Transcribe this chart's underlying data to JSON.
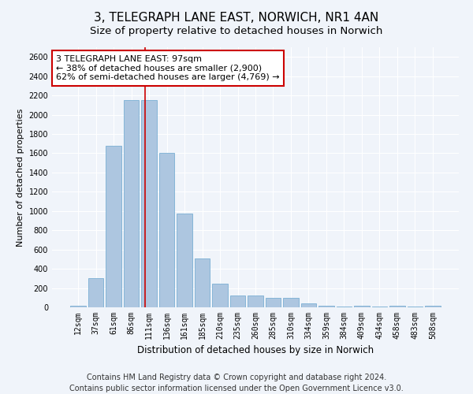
{
  "title1": "3, TELEGRAPH LANE EAST, NORWICH, NR1 4AN",
  "title2": "Size of property relative to detached houses in Norwich",
  "xlabel": "Distribution of detached houses by size in Norwich",
  "ylabel": "Number of detached properties",
  "categories": [
    "12sqm",
    "37sqm",
    "61sqm",
    "86sqm",
    "111sqm",
    "136sqm",
    "161sqm",
    "185sqm",
    "210sqm",
    "235sqm",
    "260sqm",
    "285sqm",
    "310sqm",
    "334sqm",
    "359sqm",
    "384sqm",
    "409sqm",
    "434sqm",
    "458sqm",
    "483sqm",
    "508sqm"
  ],
  "values": [
    20,
    300,
    1680,
    2150,
    2150,
    1600,
    970,
    510,
    245,
    120,
    120,
    95,
    95,
    40,
    20,
    10,
    20,
    10,
    20,
    10,
    20
  ],
  "bar_color": "#adc6e0",
  "bar_edge_color": "#7aafd4",
  "vline_x": 3.78,
  "vline_color": "#cc0000",
  "annotation_text_line1": "3 TELEGRAPH LANE EAST: 97sqm",
  "annotation_text_line2": "← 38% of detached houses are smaller (2,900)",
  "annotation_text_line3": "62% of semi-detached houses are larger (4,769) →",
  "ylim": [
    0,
    2700
  ],
  "yticks": [
    0,
    200,
    400,
    600,
    800,
    1000,
    1200,
    1400,
    1600,
    1800,
    2000,
    2200,
    2400,
    2600
  ],
  "footer_line1": "Contains HM Land Registry data © Crown copyright and database right 2024.",
  "footer_line2": "Contains public sector information licensed under the Open Government Licence v3.0.",
  "bg_color": "#f0f4fa",
  "title1_fontsize": 11,
  "title2_fontsize": 9.5,
  "xlabel_fontsize": 8.5,
  "ylabel_fontsize": 8,
  "tick_fontsize": 7,
  "annotation_fontsize": 8,
  "footer_fontsize": 7
}
